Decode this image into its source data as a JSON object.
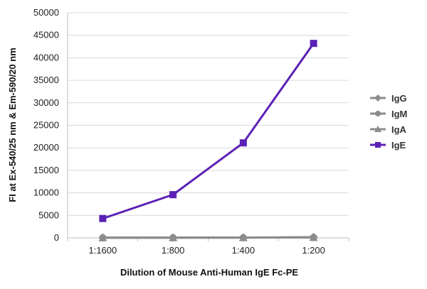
{
  "chart_data": {
    "type": "line",
    "title": "",
    "xlabel": "Dilution of Mouse Anti-Human IgE Fc-PE",
    "ylabel": "FI at Ex-540/25 nm & Em-590/20 nm",
    "categories": [
      "1:1600",
      "1:800",
      "1:400",
      "1:200"
    ],
    "ylim": [
      0,
      50000
    ],
    "yticks": [
      0,
      5000,
      10000,
      15000,
      20000,
      25000,
      30000,
      35000,
      40000,
      45000,
      50000
    ],
    "grid": true,
    "legend_position": "right",
    "series": [
      {
        "name": "IgG",
        "values": [
          50,
          60,
          70,
          150
        ],
        "color": "#8c8c8c",
        "marker": "diamond"
      },
      {
        "name": "IgM",
        "values": [
          40,
          50,
          60,
          120
        ],
        "color": "#8c8c8c",
        "marker": "circle"
      },
      {
        "name": "IgA",
        "values": [
          30,
          40,
          50,
          100
        ],
        "color": "#8c8c8c",
        "marker": "triangle"
      },
      {
        "name": "IgE",
        "values": [
          4300,
          9600,
          21100,
          43200
        ],
        "color": "#5b21b6",
        "marker": "square"
      }
    ]
  }
}
